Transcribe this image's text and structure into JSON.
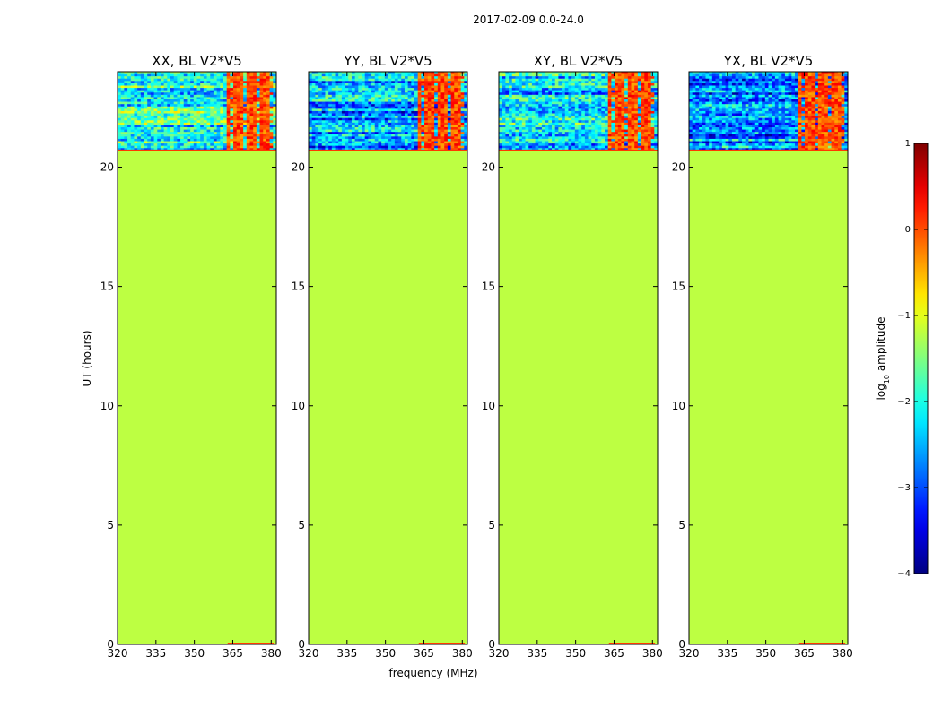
{
  "suptitle": "2017-02-09 0.0-24.0",
  "chart_data": {
    "type": "heatmap",
    "xlabel": "frequency (MHz)",
    "ylabel": "UT (hours)",
    "xlim": [
      320,
      382
    ],
    "ylim": [
      0,
      24
    ],
    "xticks": [
      320,
      335,
      350,
      365,
      380
    ],
    "yticks": [
      0,
      5,
      10,
      15,
      20
    ],
    "data_start_hour": 20.7,
    "rfi_band_mhz": [
      363,
      381
    ],
    "fill_log_amplitude": -1.2,
    "panels": [
      {
        "title": "XX, BL V2*V5",
        "pol": "XX",
        "mean_log_amplitude": -1.9
      },
      {
        "title": "YY, BL V2*V5",
        "pol": "YY",
        "mean_log_amplitude": -2.6
      },
      {
        "title": "XY, BL V2*V5",
        "pol": "XY",
        "mean_log_amplitude": -2.3
      },
      {
        "title": "YX, BL V2*V5",
        "pol": "YX",
        "mean_log_amplitude": -2.7
      }
    ],
    "colorbar": {
      "label": "log",
      "label_sub": "10",
      "label_rest": " amplitude",
      "min": -4,
      "max": 1,
      "ticks": [
        "1",
        "0",
        "−1",
        "−2",
        "−3",
        "−4"
      ],
      "colormap": "jet"
    }
  }
}
